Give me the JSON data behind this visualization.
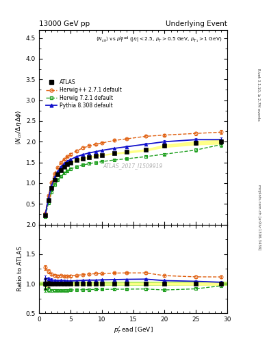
{
  "title_left": "13000 GeV pp",
  "title_right": "Underlying Event",
  "right_label_top": "Rivet 3.1.10, ≥ 2.7M events",
  "right_label_bottom": "mcplots.cern.ch [arXiv:1306.3436]",
  "watermark": "ATLAS_2017_I1509919",
  "ratio_ylabel": "Ratio to ATLAS",
  "xlabel": "p$_T^l$ead [GeV]",
  "xlim": [
    0,
    30
  ],
  "ylim_main": [
    0,
    4.7
  ],
  "ylim_ratio": [
    0.5,
    2.0
  ],
  "yticks_main": [
    0.5,
    1.0,
    1.5,
    2.0,
    2.5,
    3.0,
    3.5,
    4.0,
    4.5
  ],
  "yticks_ratio": [
    0.5,
    1.0,
    1.5,
    2.0
  ],
  "atlas_x": [
    1.0,
    1.5,
    2.0,
    2.5,
    3.0,
    3.5,
    4.0,
    4.5,
    5.0,
    6.0,
    7.0,
    8.0,
    9.0,
    10.0,
    12.0,
    14.0,
    17.0,
    20.0,
    25.0,
    29.0
  ],
  "atlas_y": [
    0.22,
    0.58,
    0.88,
    1.08,
    1.22,
    1.32,
    1.4,
    1.46,
    1.5,
    1.56,
    1.6,
    1.63,
    1.66,
    1.68,
    1.72,
    1.75,
    1.8,
    1.9,
    1.97,
    2.0
  ],
  "atlas_yerr": [
    0.02,
    0.03,
    0.03,
    0.03,
    0.02,
    0.02,
    0.02,
    0.02,
    0.02,
    0.02,
    0.02,
    0.02,
    0.02,
    0.02,
    0.02,
    0.03,
    0.03,
    0.04,
    0.05,
    0.06
  ],
  "herwigpp_x": [
    1.0,
    1.5,
    2.0,
    2.5,
    3.0,
    3.5,
    4.0,
    4.5,
    5.0,
    6.0,
    7.0,
    8.0,
    9.0,
    10.0,
    12.0,
    14.0,
    17.0,
    20.0,
    25.0,
    29.0
  ],
  "herwigpp_y": [
    0.28,
    0.7,
    1.02,
    1.23,
    1.38,
    1.5,
    1.58,
    1.64,
    1.7,
    1.78,
    1.85,
    1.9,
    1.94,
    1.97,
    2.03,
    2.07,
    2.13,
    2.16,
    2.2,
    2.23
  ],
  "herwigpp_yerr": [
    0.01,
    0.02,
    0.02,
    0.02,
    0.02,
    0.02,
    0.02,
    0.02,
    0.02,
    0.02,
    0.02,
    0.02,
    0.02,
    0.02,
    0.02,
    0.02,
    0.03,
    0.03,
    0.04,
    0.05
  ],
  "herwig721_x": [
    1.0,
    1.5,
    2.0,
    2.5,
    3.0,
    3.5,
    4.0,
    4.5,
    5.0,
    6.0,
    7.0,
    8.0,
    9.0,
    10.0,
    12.0,
    14.0,
    17.0,
    20.0,
    25.0,
    29.0
  ],
  "herwig721_y": [
    0.2,
    0.52,
    0.78,
    0.96,
    1.08,
    1.17,
    1.24,
    1.3,
    1.34,
    1.4,
    1.44,
    1.47,
    1.5,
    1.52,
    1.56,
    1.59,
    1.64,
    1.7,
    1.8,
    1.93
  ],
  "herwig721_yerr": [
    0.01,
    0.02,
    0.02,
    0.02,
    0.02,
    0.02,
    0.02,
    0.02,
    0.02,
    0.02,
    0.02,
    0.02,
    0.02,
    0.02,
    0.02,
    0.02,
    0.03,
    0.03,
    0.04,
    0.05
  ],
  "pythia_x": [
    1.0,
    1.5,
    2.0,
    2.5,
    3.0,
    3.5,
    4.0,
    4.5,
    5.0,
    6.0,
    7.0,
    8.0,
    9.0,
    10.0,
    12.0,
    14.0,
    17.0,
    20.0,
    25.0,
    29.0
  ],
  "pythia_y": [
    0.24,
    0.63,
    0.94,
    1.14,
    1.28,
    1.39,
    1.47,
    1.53,
    1.57,
    1.64,
    1.69,
    1.73,
    1.76,
    1.79,
    1.84,
    1.88,
    1.94,
    2.0,
    2.05,
    2.05
  ],
  "pythia_yerr": [
    0.01,
    0.02,
    0.02,
    0.02,
    0.02,
    0.02,
    0.02,
    0.02,
    0.02,
    0.02,
    0.02,
    0.02,
    0.02,
    0.02,
    0.02,
    0.02,
    0.03,
    0.03,
    0.04,
    0.05
  ],
  "atlas_color": "#000000",
  "herwigpp_color": "#e06010",
  "herwig721_color": "#20a020",
  "pythia_color": "#1010cc",
  "atlas_band_color": "#ffff88",
  "ratio_band_color": "#bbee66",
  "legend_entries": [
    "ATLAS",
    "Herwig++ 2.7.1 default",
    "Herwig 7.2.1 default",
    "Pythia 8.308 default"
  ]
}
